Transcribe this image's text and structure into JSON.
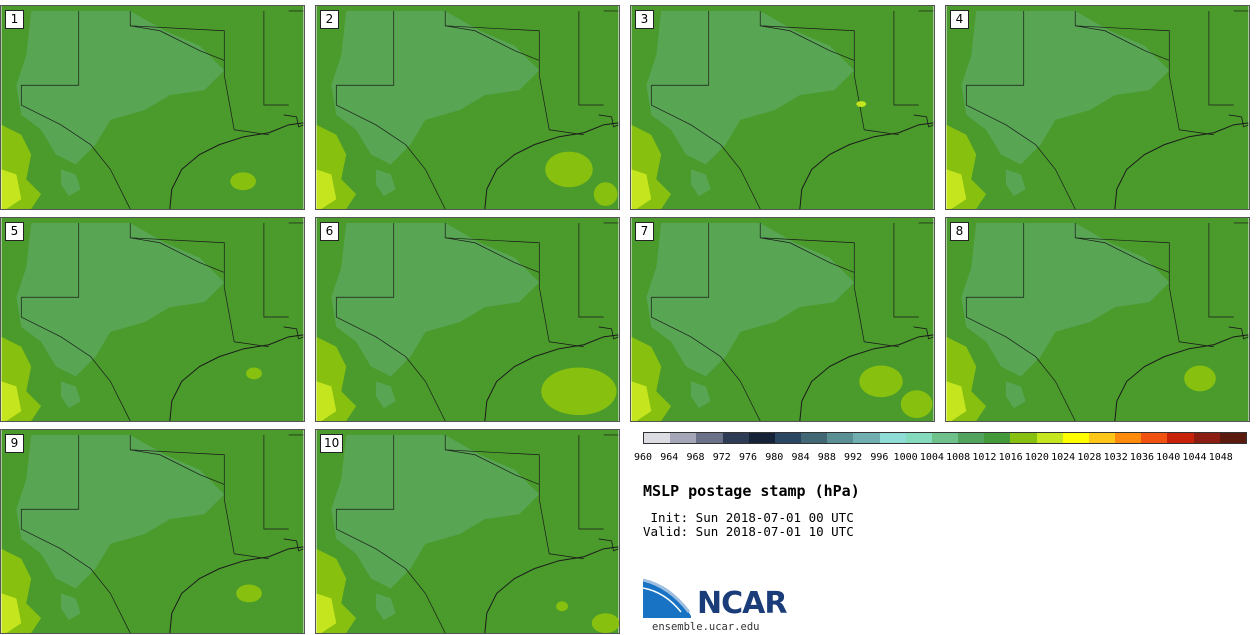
{
  "panels": [
    "1",
    "2",
    "3",
    "4",
    "5",
    "6",
    "7",
    "8",
    "9",
    "10"
  ],
  "colorbar": {
    "colors": [
      "#dcdde3",
      "#a5a7b9",
      "#6b7188",
      "#2d3b55",
      "#152238",
      "#2a4660",
      "#426876",
      "#5a8f93",
      "#70aeb0",
      "#8fdcd6",
      "#85d9bd",
      "#6fc18c",
      "#52a35e",
      "#449a3a",
      "#87c010",
      "#c5e51e",
      "#ffff00",
      "#ffc61a",
      "#ff8a0c",
      "#f05212",
      "#c8220a",
      "#8b1d12",
      "#5a1a0e"
    ],
    "ticks": [
      "960",
      "964",
      "968",
      "972",
      "976",
      "980",
      "984",
      "988",
      "992",
      "996",
      "1000",
      "1004",
      "1008",
      "1012",
      "1016",
      "1020",
      "1024",
      "1028",
      "1032",
      "1036",
      "1040",
      "1044",
      "1048"
    ]
  },
  "title": "MSLP postage stamp (hPa)",
  "init": " Init: Sun 2018-07-01 00 UTC",
  "valid": "Valid: Sun 2018-07-01 10 UTC",
  "logo": {
    "text": "NCAR",
    "url": "ensemble.ucar.edu"
  }
}
